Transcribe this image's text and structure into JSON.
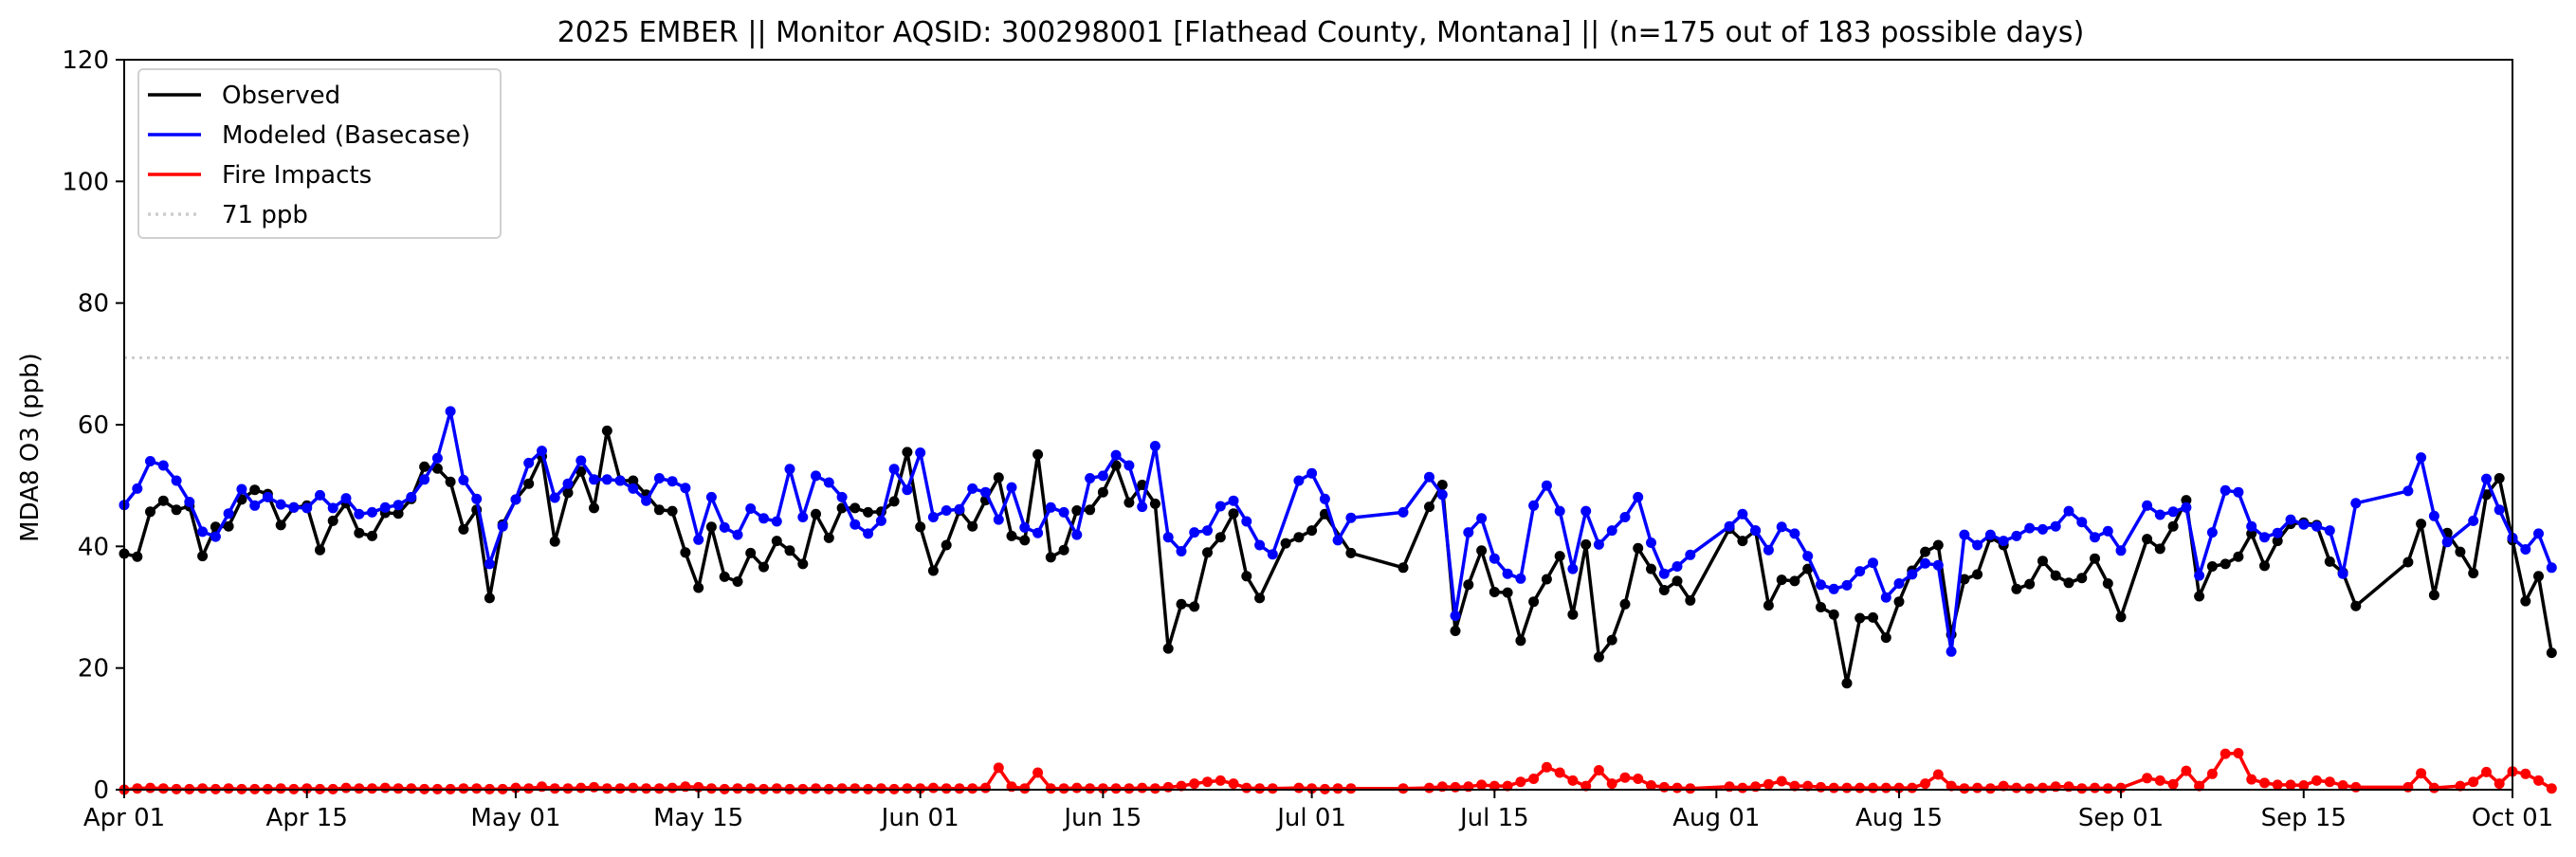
{
  "chart_data": {
    "type": "line",
    "title": "2025 EMBER || Monitor AQSID: 300298001 [Flathead County, Montana] || (n=175 out of 183 possible days)",
    "xlabel": "",
    "ylabel": "MDA8 O3 (ppb)",
    "x_start_date": "2025-04-01",
    "xlim": [
      "2025-04-01",
      "2025-10-01"
    ],
    "ylim": [
      0,
      120
    ],
    "grid": false,
    "legend_position": "upper-left",
    "x_tick_labels": [
      "Apr 01",
      "Apr 15",
      "May 01",
      "May 15",
      "Jun 01",
      "Jun 15",
      "Jul 01",
      "Jul 15",
      "Aug 01",
      "Aug 15",
      "Sep 01",
      "Sep 15",
      "Oct 01"
    ],
    "y_tick_labels": [
      "0",
      "20",
      "40",
      "60",
      "80",
      "100",
      "120"
    ],
    "y_ticks": [
      0,
      20,
      40,
      60,
      80,
      100,
      120
    ],
    "reference_line": {
      "name": "71 ppb",
      "value": 71,
      "color": "#cccccc",
      "style": "dotted"
    },
    "series": [
      {
        "name": "Observed",
        "color": "#000000",
        "values": [
          38.8,
          38.3,
          45.7,
          47.5,
          46.0,
          46.6,
          38.4,
          43.2,
          43.3,
          47.7,
          49.3,
          48.6,
          43.5,
          46.4,
          46.7,
          39.4,
          44.2,
          47.1,
          42.2,
          41.7,
          45.5,
          45.4,
          47.8,
          53.1,
          52.8,
          50.6,
          42.8,
          46.0,
          31.5,
          43.6,
          47.7,
          50.3,
          54.8,
          40.8,
          48.8,
          52.3,
          46.3,
          59.0,
          50.8,
          50.8,
          48.5,
          46.0,
          45.8,
          39.0,
          33.2,
          43.2,
          35.0,
          34.2,
          38.9,
          36.6,
          40.9,
          39.3,
          37.1,
          45.3,
          41.4,
          46.3,
          46.3,
          45.6,
          45.7,
          47.4,
          55.5,
          43.2,
          36.0,
          40.2,
          45.9,
          43.3,
          47.6,
          51.3,
          41.7,
          41.0,
          55.1,
          38.2,
          39.4,
          45.9,
          46.0,
          48.9,
          53.3,
          47.2,
          50.1,
          47.0,
          23.2,
          30.5,
          30.1,
          39.0,
          41.5,
          45.4,
          35.1,
          31.5,
          null,
          40.5,
          41.5,
          42.6,
          45.3,
          null,
          38.9,
          null,
          null,
          null,
          36.5,
          null,
          46.5,
          50.1,
          26.1,
          33.7,
          39.3,
          32.5,
          32.4,
          24.5,
          30.9,
          34.6,
          38.4,
          28.8,
          40.3,
          21.8,
          24.6,
          30.5,
          39.7,
          36.3,
          32.8,
          34.3,
          31.1,
          null,
          null,
          42.9,
          40.9,
          42.6,
          30.3,
          34.5,
          34.3,
          36.3,
          30.0,
          28.8,
          17.5,
          28.2,
          28.3,
          25.0,
          30.9,
          36.0,
          39.1,
          40.2,
          25.5,
          34.6,
          35.4,
          41.5,
          40.2,
          33.0,
          33.8,
          37.6,
          35.2,
          34.0,
          34.8,
          38.0,
          33.9,
          28.4,
          null,
          41.2,
          39.6,
          43.3,
          47.6,
          31.8,
          36.7,
          37.1,
          38.3,
          42.1,
          36.8,
          40.9,
          43.7,
          43.9,
          43.5,
          37.5,
          35.7,
          30.2,
          null,
          null,
          null,
          37.4,
          43.7,
          32.0,
          42.2,
          39.1,
          35.6,
          48.5,
          51.2,
          41.0,
          31.0,
          35.1,
          22.5
        ]
      },
      {
        "name": "Modeled (Basecase)",
        "color": "#0000ff",
        "values": [
          46.8,
          49.5,
          54.0,
          53.3,
          50.8,
          47.3,
          42.4,
          41.6,
          45.4,
          49.4,
          46.7,
          48.1,
          46.9,
          46.4,
          46.3,
          48.4,
          46.3,
          47.9,
          45.3,
          45.6,
          46.4,
          46.8,
          48.1,
          51.0,
          54.5,
          62.2,
          50.9,
          47.8,
          37.1,
          43.3,
          47.7,
          53.7,
          55.7,
          48.0,
          50.3,
          54.1,
          51.0,
          51.0,
          50.8,
          49.5,
          47.5,
          51.2,
          50.7,
          49.6,
          41.1,
          48.1,
          43.1,
          41.9,
          46.2,
          44.6,
          44.1,
          52.7,
          44.8,
          51.6,
          50.5,
          48.1,
          43.6,
          42.1,
          44.2,
          52.7,
          49.3,
          55.4,
          44.8,
          45.9,
          46.1,
          49.5,
          48.9,
          44.4,
          49.7,
          43.1,
          42.2,
          46.4,
          45.6,
          41.9,
          51.2,
          51.6,
          55.0,
          53.3,
          46.5,
          56.5,
          41.5,
          39.2,
          42.3,
          42.6,
          46.6,
          47.5,
          44.1,
          40.2,
          38.7,
          null,
          50.8,
          52.0,
          47.8,
          41.0,
          44.7,
          null,
          null,
          null,
          45.6,
          null,
          51.4,
          48.5,
          28.6,
          42.3,
          44.6,
          38.0,
          35.5,
          34.7,
          46.7,
          50.0,
          45.8,
          36.3,
          45.8,
          40.3,
          42.6,
          44.8,
          48.1,
          40.6,
          35.5,
          36.7,
          38.6,
          null,
          null,
          43.3,
          45.3,
          42.6,
          39.4,
          43.2,
          42.1,
          38.4,
          33.7,
          33.0,
          33.6,
          35.9,
          37.3,
          31.6,
          33.9,
          35.4,
          37.2,
          36.9,
          22.7,
          41.9,
          40.2,
          41.9,
          40.9,
          41.7,
          43.0,
          42.8,
          43.3,
          45.8,
          44.0,
          41.5,
          42.5,
          39.3,
          null,
          46.7,
          45.2,
          45.7,
          46.4,
          35.2,
          42.3,
          49.2,
          48.9,
          43.3,
          41.5,
          42.2,
          44.4,
          43.6,
          43.3,
          42.6,
          35.5,
          47.1,
          null,
          null,
          null,
          49.1,
          54.6,
          45.0,
          40.7,
          null,
          44.2,
          51.1,
          46.0,
          41.4,
          39.5,
          42.1,
          36.5
        ]
      },
      {
        "name": "Fire Impacts",
        "color": "#ff0000",
        "values": [
          0,
          0.2,
          0.3,
          0.2,
          0.1,
          0.1,
          0.2,
          0.1,
          0.2,
          0.1,
          0.1,
          0.1,
          0.2,
          0.1,
          0.2,
          0.1,
          0.1,
          0.3,
          0.2,
          0.2,
          0.3,
          0.2,
          0.2,
          0.1,
          0.1,
          0.1,
          0.2,
          0.2,
          0.1,
          0.1,
          0.3,
          0.2,
          0.5,
          0.2,
          0.2,
          0.3,
          0.4,
          0.2,
          0.2,
          0.3,
          0.2,
          0.2,
          0.3,
          0.5,
          0.4,
          0.2,
          0.1,
          0.2,
          0.2,
          0.1,
          0.2,
          0.1,
          0.1,
          0.2,
          0.1,
          0.2,
          0.2,
          0.1,
          0.2,
          0.1,
          0.2,
          0.2,
          0.3,
          0.2,
          0.2,
          0.2,
          0.3,
          3.6,
          0.5,
          0.2,
          2.8,
          0.2,
          0.2,
          0.3,
          0.2,
          0.2,
          0.2,
          0.2,
          0.3,
          0.2,
          0.4,
          0.6,
          1.0,
          1.3,
          1.5,
          1.0,
          0.3,
          0.2,
          0.2,
          null,
          0.3,
          0.2,
          0.1,
          0.2,
          0.2,
          null,
          null,
          null,
          0.2,
          null,
          0.3,
          0.5,
          0.4,
          0.5,
          0.8,
          0.6,
          0.6,
          1.3,
          1.8,
          3.7,
          2.8,
          1.5,
          0.6,
          3.2,
          1.0,
          2.0,
          1.8,
          0.7,
          0.4,
          0.3,
          0.2,
          null,
          null,
          0.5,
          0.3,
          0.5,
          0.9,
          1.4,
          0.6,
          0.6,
          0.4,
          0.3,
          0.3,
          0.3,
          0.3,
          0.3,
          0.3,
          0.3,
          1.0,
          2.5,
          0.6,
          0.2,
          0.3,
          0.2,
          0.6,
          0.3,
          0.2,
          0.3,
          0.5,
          0.5,
          0.2,
          0.3,
          0.2,
          0.3,
          null,
          1.9,
          1.5,
          0.9,
          3.1,
          0.6,
          2.6,
          5.9,
          6.0,
          1.7,
          1.1,
          0.8,
          0.8,
          0.7,
          1.5,
          1.3,
          0.7,
          0.4,
          null,
          null,
          null,
          0.4,
          2.7,
          0.3,
          null,
          0.6,
          1.3,
          2.9,
          1.0,
          3.0,
          2.6,
          1.5,
          0.2
        ]
      }
    ]
  }
}
